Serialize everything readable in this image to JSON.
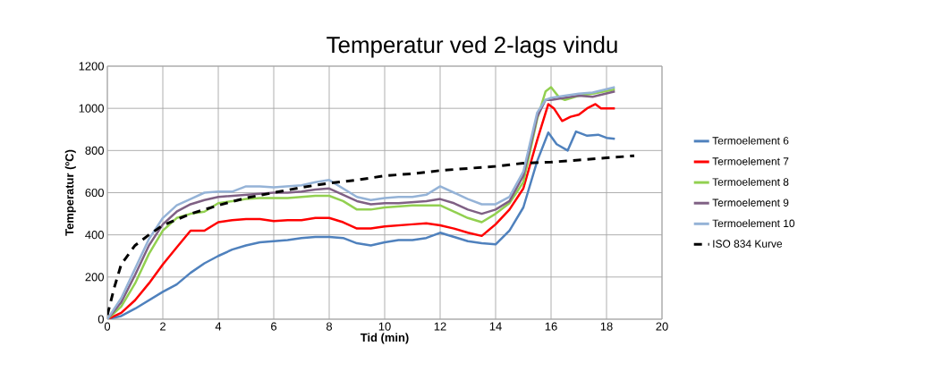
{
  "chart_data": {
    "type": "line",
    "title": "Temperatur ved 2-lags vindu",
    "xlabel": "Tid (min)",
    "ylabel": "Temperatur (ºC)",
    "xlim": [
      0,
      20
    ],
    "xticks": [
      0,
      2,
      4,
      6,
      8,
      10,
      12,
      14,
      16,
      18,
      20
    ],
    "ylim": [
      0,
      1200
    ],
    "yticks": [
      0,
      200,
      400,
      600,
      800,
      1000,
      1200
    ],
    "grid": true,
    "legend": "right",
    "marker": "none",
    "series": [
      {
        "name": "Termoelement 6",
        "color": "#4f81bd",
        "line_style": "solid",
        "x": [
          0,
          0.5,
          1,
          1.5,
          2,
          2.5,
          3,
          3.5,
          4,
          4.5,
          5,
          5.5,
          6,
          6.5,
          7,
          7.5,
          8,
          8.5,
          9,
          9.5,
          10,
          10.5,
          11,
          11.5,
          12,
          12.5,
          13,
          13.5,
          14,
          14.5,
          15,
          15.5,
          15.9,
          16.2,
          16.6,
          16.9,
          17.3,
          17.7,
          18,
          18.3
        ],
        "values": [
          0,
          15,
          50,
          90,
          130,
          165,
          220,
          265,
          300,
          330,
          350,
          365,
          370,
          375,
          385,
          390,
          390,
          385,
          360,
          350,
          365,
          375,
          375,
          385,
          410,
          390,
          370,
          360,
          355,
          420,
          530,
          750,
          885,
          830,
          800,
          890,
          870,
          875,
          860,
          855
        ]
      },
      {
        "name": "Termoelement 7",
        "color": "#ff0000",
        "line_style": "solid",
        "x": [
          0,
          0.5,
          1,
          1.5,
          2,
          2.5,
          3,
          3.5,
          4,
          4.5,
          5,
          5.5,
          6,
          6.5,
          7,
          7.5,
          8,
          8.5,
          9,
          9.5,
          10,
          10.5,
          11,
          11.5,
          12,
          12.5,
          13,
          13.5,
          14,
          14.5,
          15,
          15.5,
          15.9,
          16.1,
          16.4,
          16.7,
          17,
          17.3,
          17.6,
          17.8,
          18.3
        ],
        "values": [
          0,
          30,
          90,
          170,
          260,
          340,
          420,
          420,
          460,
          470,
          475,
          475,
          465,
          470,
          470,
          480,
          480,
          460,
          430,
          430,
          440,
          445,
          450,
          455,
          445,
          430,
          410,
          395,
          450,
          520,
          620,
          850,
          1020,
          1000,
          940,
          960,
          970,
          1000,
          1020,
          1000,
          1000
        ]
      },
      {
        "name": "Termoelement 8",
        "color": "#92d050",
        "line_style": "solid",
        "x": [
          0,
          0.5,
          1,
          1.5,
          2,
          2.5,
          3,
          3.5,
          4,
          4.5,
          5,
          5.5,
          6,
          6.5,
          7,
          7.5,
          8,
          8.5,
          9,
          9.5,
          10,
          10.5,
          11,
          11.5,
          12,
          12.5,
          13,
          13.5,
          14,
          14.5,
          15,
          15.5,
          15.8,
          16,
          16.3,
          16.5,
          17,
          17.5,
          18.3
        ],
        "values": [
          0,
          60,
          170,
          310,
          420,
          480,
          500,
          510,
          550,
          560,
          570,
          575,
          575,
          575,
          580,
          585,
          585,
          560,
          520,
          520,
          530,
          535,
          540,
          540,
          540,
          510,
          480,
          460,
          500,
          550,
          650,
          950,
          1080,
          1100,
          1050,
          1040,
          1060,
          1070,
          1090
        ]
      },
      {
        "name": "Termoelement 9",
        "color": "#7f6084",
        "line_style": "solid",
        "x": [
          0,
          0.5,
          1,
          1.5,
          2,
          2.5,
          3,
          3.5,
          4,
          4.5,
          5,
          5.5,
          6,
          6.5,
          7,
          7.5,
          8,
          8.5,
          9,
          9.5,
          10,
          10.5,
          11,
          11.5,
          12,
          12.5,
          13,
          13.5,
          14,
          14.5,
          15,
          15.5,
          15.8,
          16,
          16.5,
          17,
          17.5,
          18.3
        ],
        "values": [
          0,
          80,
          210,
          350,
          450,
          510,
          545,
          565,
          580,
          585,
          590,
          595,
          600,
          600,
          605,
          615,
          620,
          590,
          560,
          545,
          550,
          550,
          555,
          560,
          570,
          550,
          520,
          500,
          520,
          560,
          680,
          960,
          1040,
          1040,
          1050,
          1060,
          1055,
          1080
        ]
      },
      {
        "name": "Termoelement 10",
        "color": "#95b3d7",
        "line_style": "solid",
        "x": [
          0,
          0.5,
          1,
          1.5,
          2,
          2.5,
          3,
          3.5,
          4,
          4.5,
          5,
          5.5,
          6,
          6.5,
          7,
          7.5,
          8,
          8.5,
          9,
          9.5,
          10,
          10.5,
          11,
          11.5,
          12,
          12.5,
          13,
          13.5,
          14,
          14.5,
          15,
          15.5,
          15.8,
          16,
          16.5,
          17,
          17.5,
          18.3
        ],
        "values": [
          0,
          100,
          240,
          380,
          480,
          540,
          570,
          600,
          605,
          605,
          630,
          630,
          625,
          630,
          635,
          650,
          660,
          620,
          580,
          565,
          575,
          580,
          580,
          590,
          630,
          600,
          570,
          545,
          545,
          580,
          700,
          980,
          1040,
          1050,
          1060,
          1070,
          1075,
          1100
        ]
      },
      {
        "name": "ISO 834 Kurve",
        "color": "#000000",
        "line_style": "dashed",
        "x": [
          0,
          0.25,
          0.5,
          1,
          1.5,
          2,
          3,
          4,
          5,
          6,
          7,
          8,
          9,
          10,
          11,
          12,
          13,
          14,
          15,
          16,
          17,
          18,
          19
        ],
        "values": [
          20,
          150,
          260,
          350,
          400,
          445,
          500,
          540,
          575,
          600,
          625,
          645,
          660,
          680,
          690,
          705,
          715,
          725,
          740,
          745,
          755,
          765,
          775
        ]
      }
    ]
  }
}
